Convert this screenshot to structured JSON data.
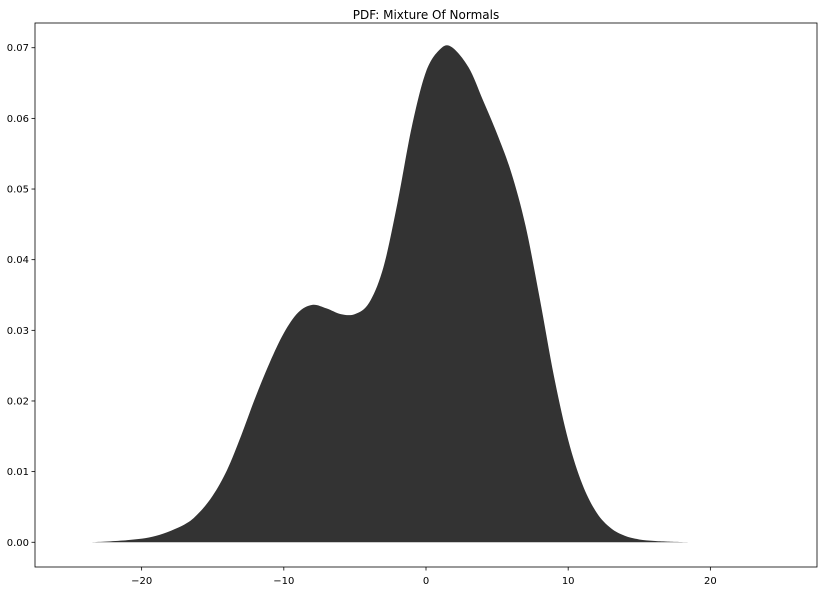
{
  "chart_data": {
    "type": "area",
    "title": "PDF: Mixture Of Normals",
    "xlabel": "",
    "ylabel": "",
    "xlim": [
      -27.5,
      27.5
    ],
    "ylim": [
      -0.0035,
      0.0735
    ],
    "grid": false,
    "legend": "none",
    "fill_color": "#333333",
    "x_ticks": [
      -20,
      -10,
      0,
      10,
      20
    ],
    "x_tick_labels": [
      "−20",
      "−10",
      "0",
      "10",
      "20"
    ],
    "y_ticks": [
      0.0,
      0.01,
      0.02,
      0.03,
      0.04,
      0.05,
      0.06,
      0.07
    ],
    "y_tick_labels": [
      "0.00",
      "0.01",
      "0.02",
      "0.03",
      "0.04",
      "0.05",
      "0.06",
      "0.07"
    ],
    "series": [
      {
        "x": [
          -23.5,
          -21,
          -19,
          -17,
          -16,
          -15,
          -14,
          -13,
          -12,
          -11,
          -10,
          -9,
          -8,
          -7,
          -6,
          -5,
          -4,
          -3,
          -2,
          -1,
          0,
          1,
          1.8,
          3,
          4,
          5,
          6,
          7,
          8,
          9,
          10,
          11,
          12,
          13,
          14,
          15,
          16,
          17,
          18.8
        ],
        "y": [
          0.0,
          0.0003,
          0.0009,
          0.0025,
          0.0041,
          0.0066,
          0.0102,
          0.0151,
          0.0205,
          0.0254,
          0.0296,
          0.0325,
          0.0336,
          0.0331,
          0.0323,
          0.0323,
          0.0339,
          0.0389,
          0.0481,
          0.0588,
          0.0666,
          0.0698,
          0.0701,
          0.0672,
          0.0626,
          0.0578,
          0.0523,
          0.0448,
          0.0345,
          0.0235,
          0.0145,
          0.0082,
          0.0042,
          0.002,
          0.0009,
          0.0004,
          0.0002,
          0.0001,
          0.0
        ]
      }
    ]
  }
}
